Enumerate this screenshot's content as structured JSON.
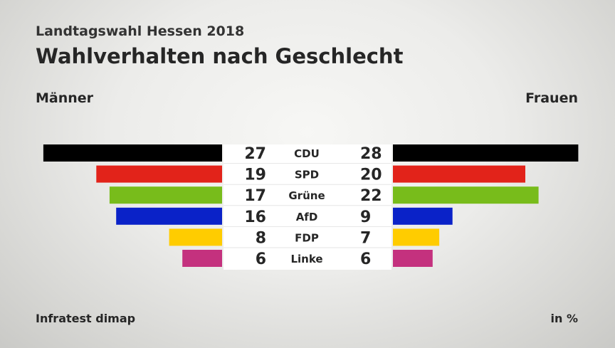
{
  "header": {
    "subtitle": "Landtagswahl Hessen 2018",
    "title": "Wahlverhalten nach Geschlecht"
  },
  "groups": {
    "left": "Männer",
    "right": "Frauen"
  },
  "footer": {
    "source": "Infratest dimap",
    "unit": "in %"
  },
  "chart_data": {
    "type": "bar",
    "orientation": "horizontal-butterfly",
    "title": "Wahlverhalten nach Geschlecht",
    "subtitle": "Landtagswahl Hessen 2018",
    "unit": "in %",
    "categories": [
      "CDU",
      "SPD",
      "Grüne",
      "AfD",
      "FDP",
      "Linke"
    ],
    "series": [
      {
        "name": "Männer",
        "values": [
          27,
          19,
          17,
          16,
          8,
          6
        ]
      },
      {
        "name": "Frauen",
        "values": [
          28,
          20,
          22,
          9,
          7,
          6
        ]
      }
    ],
    "colors": [
      "#000000",
      "#e2231a",
      "#78bc1b",
      "#0a22c8",
      "#ffcc00",
      "#c4317e"
    ],
    "grid": false,
    "legend": "none"
  }
}
